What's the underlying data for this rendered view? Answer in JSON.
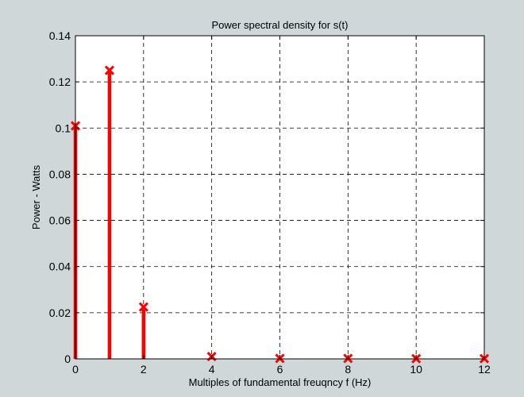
{
  "window": {
    "background": "#cfd7d9"
  },
  "chart_data": {
    "type": "stem",
    "title": "Power spectral density for s(t)",
    "xlabel": "Multiples of fundamental freuqncy f (Hz)",
    "ylabel": "Power - Watts",
    "xlim": [
      0,
      12
    ],
    "ylim": [
      0,
      0.14
    ],
    "xticks": [
      "0",
      "2",
      "4",
      "6",
      "8",
      "10",
      "12"
    ],
    "yticks": [
      "0",
      "0.02",
      "0.04",
      "0.06",
      "0.08",
      "0.1",
      "0.12",
      "0.14"
    ],
    "grid": true,
    "grid_style": "dashed",
    "marker": "x",
    "color": "#ff0000",
    "series": [
      {
        "x": [
          0,
          1,
          2,
          4,
          6,
          8,
          10,
          12
        ],
        "values": [
          0.101,
          0.125,
          0.0225,
          0.001,
          0.0002,
          0.0002,
          0.0001,
          0.0001
        ]
      }
    ]
  }
}
